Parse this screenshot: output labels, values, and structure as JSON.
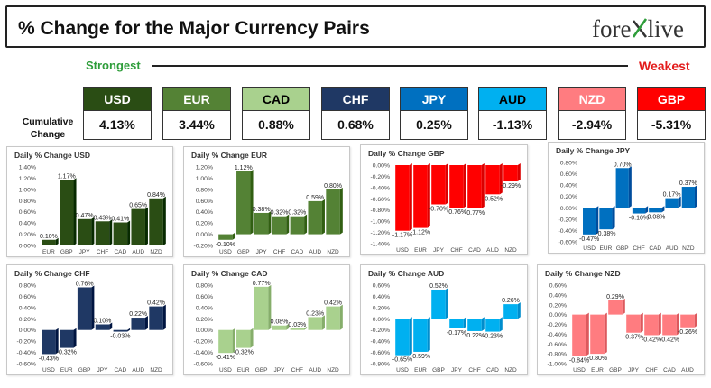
{
  "header": {
    "title": "% Change for the Major Currency Pairs",
    "logo_left": "fore",
    "logo_right": "live"
  },
  "scale": {
    "strongest": "Strongest",
    "weakest": "Weakest",
    "cumulative_label_1": "Cumulative",
    "cumulative_label_2": "Change"
  },
  "currencies": [
    {
      "code": "USD",
      "value": "4.13%",
      "bg": "#2a4d14",
      "fg": "#ffffff"
    },
    {
      "code": "EUR",
      "value": "3.44%",
      "bg": "#548235",
      "fg": "#ffffff"
    },
    {
      "code": "CAD",
      "value": "0.88%",
      "bg": "#a9d18e",
      "fg": "#000000"
    },
    {
      "code": "CHF",
      "value": "0.68%",
      "bg": "#1f3864",
      "fg": "#ffffff"
    },
    {
      "code": "JPY",
      "value": "0.25%",
      "bg": "#0070c0",
      "fg": "#ffffff"
    },
    {
      "code": "AUD",
      "value": "-1.13%",
      "bg": "#00b0f0",
      "fg": "#000000"
    },
    {
      "code": "NZD",
      "value": "-2.94%",
      "bg": "#ff7c80",
      "fg": "#ffffff"
    },
    {
      "code": "GBP",
      "value": "-5.31%",
      "bg": "#ff0000",
      "fg": "#ffffff"
    }
  ],
  "chart_data": [
    {
      "type": "bar",
      "title": "Daily % Change USD",
      "categories": [
        "EUR",
        "GBP",
        "JPY",
        "CHF",
        "CAD",
        "AUD",
        "NZD"
      ],
      "values": [
        0.1,
        1.17,
        0.47,
        0.43,
        0.41,
        0.65,
        0.84
      ],
      "labels": [
        "0.10%",
        "1.17%",
        "0.47%",
        "0.43%",
        "0.41%",
        "0.65%",
        "0.84%"
      ],
      "ylim": [
        0,
        1.4
      ],
      "ticks": [
        0.0,
        0.2,
        0.4,
        0.6,
        0.8,
        1.0,
        1.2,
        1.4
      ],
      "tick_labels": [
        "0.00%",
        "0.20%",
        "0.40%",
        "0.60%",
        "0.80%",
        "1.00%",
        "1.20%",
        "1.40%"
      ],
      "color": "#2a4d14"
    },
    {
      "type": "bar",
      "title": "Daily % Change EUR",
      "categories": [
        "USD",
        "GBP",
        "JPY",
        "CHF",
        "CAD",
        "AUD",
        "NZD"
      ],
      "values": [
        -0.1,
        1.12,
        0.38,
        0.32,
        0.32,
        0.59,
        0.8
      ],
      "labels": [
        "-0.10%",
        "1.12%",
        "0.38%",
        "0.32%",
        "0.32%",
        "0.59%",
        "0.80%"
      ],
      "ylim": [
        -0.2,
        1.2
      ],
      "ticks": [
        -0.2,
        0.0,
        0.2,
        0.4,
        0.6,
        0.8,
        1.0,
        1.2
      ],
      "tick_labels": [
        "-0.20%",
        "0.00%",
        "0.20%",
        "0.40%",
        "0.60%",
        "0.80%",
        "1.00%",
        "1.20%"
      ],
      "color": "#548235"
    },
    {
      "type": "bar",
      "title": "Daily % Change GBP",
      "categories": [
        "USD",
        "EUR",
        "JPY",
        "CHF",
        "CAD",
        "AUD",
        "NZD"
      ],
      "values": [
        -1.17,
        -1.12,
        -0.7,
        -0.76,
        -0.77,
        -0.52,
        -0.29
      ],
      "labels": [
        "-1.17%",
        "-1.12%",
        "-0.70%",
        "-0.76%",
        "-0.77%",
        "-0.52%",
        "-0.29%"
      ],
      "ylim": [
        -1.4,
        0
      ],
      "ticks": [
        -1.4,
        -1.2,
        -1.0,
        -0.8,
        -0.6,
        -0.4,
        -0.2,
        0.0
      ],
      "tick_labels": [
        "-1.40%",
        "-1.20%",
        "-1.00%",
        "-0.80%",
        "-0.60%",
        "-0.40%",
        "-0.20%",
        "0.00%"
      ],
      "color": "#ff0000"
    },
    {
      "type": "bar",
      "title": "Daily % Change JPY",
      "categories": [
        "USD",
        "EUR",
        "GBP",
        "CHF",
        "CAD",
        "AUD",
        "NZD"
      ],
      "values": [
        -0.47,
        -0.38,
        0.7,
        -0.1,
        -0.08,
        0.17,
        0.37
      ],
      "labels": [
        "-0.47%",
        "-0.38%",
        "0.70%",
        "-0.10%",
        "-0.08%",
        "0.17%",
        "0.37%"
      ],
      "ylim": [
        -0.6,
        0.8
      ],
      "ticks": [
        -0.6,
        -0.4,
        -0.2,
        0.0,
        0.2,
        0.4,
        0.6,
        0.8
      ],
      "tick_labels": [
        "-0.60%",
        "-0.40%",
        "-0.20%",
        "0.00%",
        "0.20%",
        "0.40%",
        "0.60%",
        "0.80%"
      ],
      "color": "#0070c0"
    },
    {
      "type": "bar",
      "title": "Daily % Change CHF",
      "categories": [
        "USD",
        "EUR",
        "GBP",
        "JPY",
        "CAD",
        "AUD",
        "NZD"
      ],
      "values": [
        -0.43,
        -0.32,
        0.76,
        0.1,
        -0.03,
        0.22,
        0.42
      ],
      "labels": [
        "-0.43%",
        "-0.32%",
        "0.76%",
        "0.10%",
        "-0.03%",
        "0.22%",
        "0.42%"
      ],
      "ylim": [
        -0.6,
        0.8
      ],
      "ticks": [
        -0.6,
        -0.4,
        -0.2,
        0.0,
        0.2,
        0.4,
        0.6,
        0.8
      ],
      "tick_labels": [
        "-0.60%",
        "-0.40%",
        "-0.20%",
        "0.00%",
        "0.20%",
        "0.40%",
        "0.60%",
        "0.80%"
      ],
      "color": "#1f3864"
    },
    {
      "type": "bar",
      "title": "Daily % Change CAD",
      "categories": [
        "USD",
        "EUR",
        "GBP",
        "JPY",
        "CHF",
        "AUD",
        "NZD"
      ],
      "values": [
        -0.41,
        -0.32,
        0.77,
        0.08,
        0.03,
        0.23,
        0.42
      ],
      "labels": [
        "-0.41%",
        "-0.32%",
        "0.77%",
        "0.08%",
        "0.03%",
        "0.23%",
        "0.42%"
      ],
      "ylim": [
        -0.6,
        0.8
      ],
      "ticks": [
        -0.6,
        -0.4,
        -0.2,
        0.0,
        0.2,
        0.4,
        0.6,
        0.8
      ],
      "tick_labels": [
        "-0.60%",
        "-0.40%",
        "-0.20%",
        "0.00%",
        "0.20%",
        "0.40%",
        "0.60%",
        "0.80%"
      ],
      "color": "#a9d18e"
    },
    {
      "type": "bar",
      "title": "Daily % Change AUD",
      "categories": [
        "USD",
        "EUR",
        "GBP",
        "JPY",
        "CHF",
        "CAD",
        "NZD"
      ],
      "values": [
        -0.65,
        -0.59,
        0.52,
        -0.17,
        -0.22,
        -0.23,
        0.26
      ],
      "labels": [
        "-0.65%",
        "-0.59%",
        "0.52%",
        "-0.17%",
        "-0.22%",
        "-0.23%",
        "0.26%"
      ],
      "ylim": [
        -0.8,
        0.6
      ],
      "ticks": [
        -0.8,
        -0.6,
        -0.4,
        -0.2,
        0.0,
        0.2,
        0.4,
        0.6
      ],
      "tick_labels": [
        "-0.80%",
        "-0.60%",
        "-0.40%",
        "-0.20%",
        "0.00%",
        "0.20%",
        "0.40%",
        "0.60%"
      ],
      "color": "#00b0f0"
    },
    {
      "type": "bar",
      "title": "Daily % Change NZD",
      "categories": [
        "USD",
        "EUR",
        "GBP",
        "JPY",
        "CHF",
        "CAD",
        "AUD"
      ],
      "values": [
        -0.84,
        -0.8,
        0.29,
        -0.37,
        -0.42,
        -0.42,
        -0.26
      ],
      "labels": [
        "-0.84%",
        "-0.80%",
        "0.29%",
        "-0.37%",
        "-0.42%",
        "-0.42%",
        "-0.26%"
      ],
      "ylim": [
        -1.0,
        0.6
      ],
      "ticks": [
        -1.0,
        -0.8,
        -0.6,
        -0.4,
        -0.2,
        0.0,
        0.2,
        0.4,
        0.6
      ],
      "tick_labels": [
        "-1.00%",
        "-0.80%",
        "-0.60%",
        "-0.40%",
        "-0.20%",
        "0.00%",
        "0.20%",
        "0.40%",
        "0.60%"
      ],
      "color": "#ff7c80"
    }
  ]
}
